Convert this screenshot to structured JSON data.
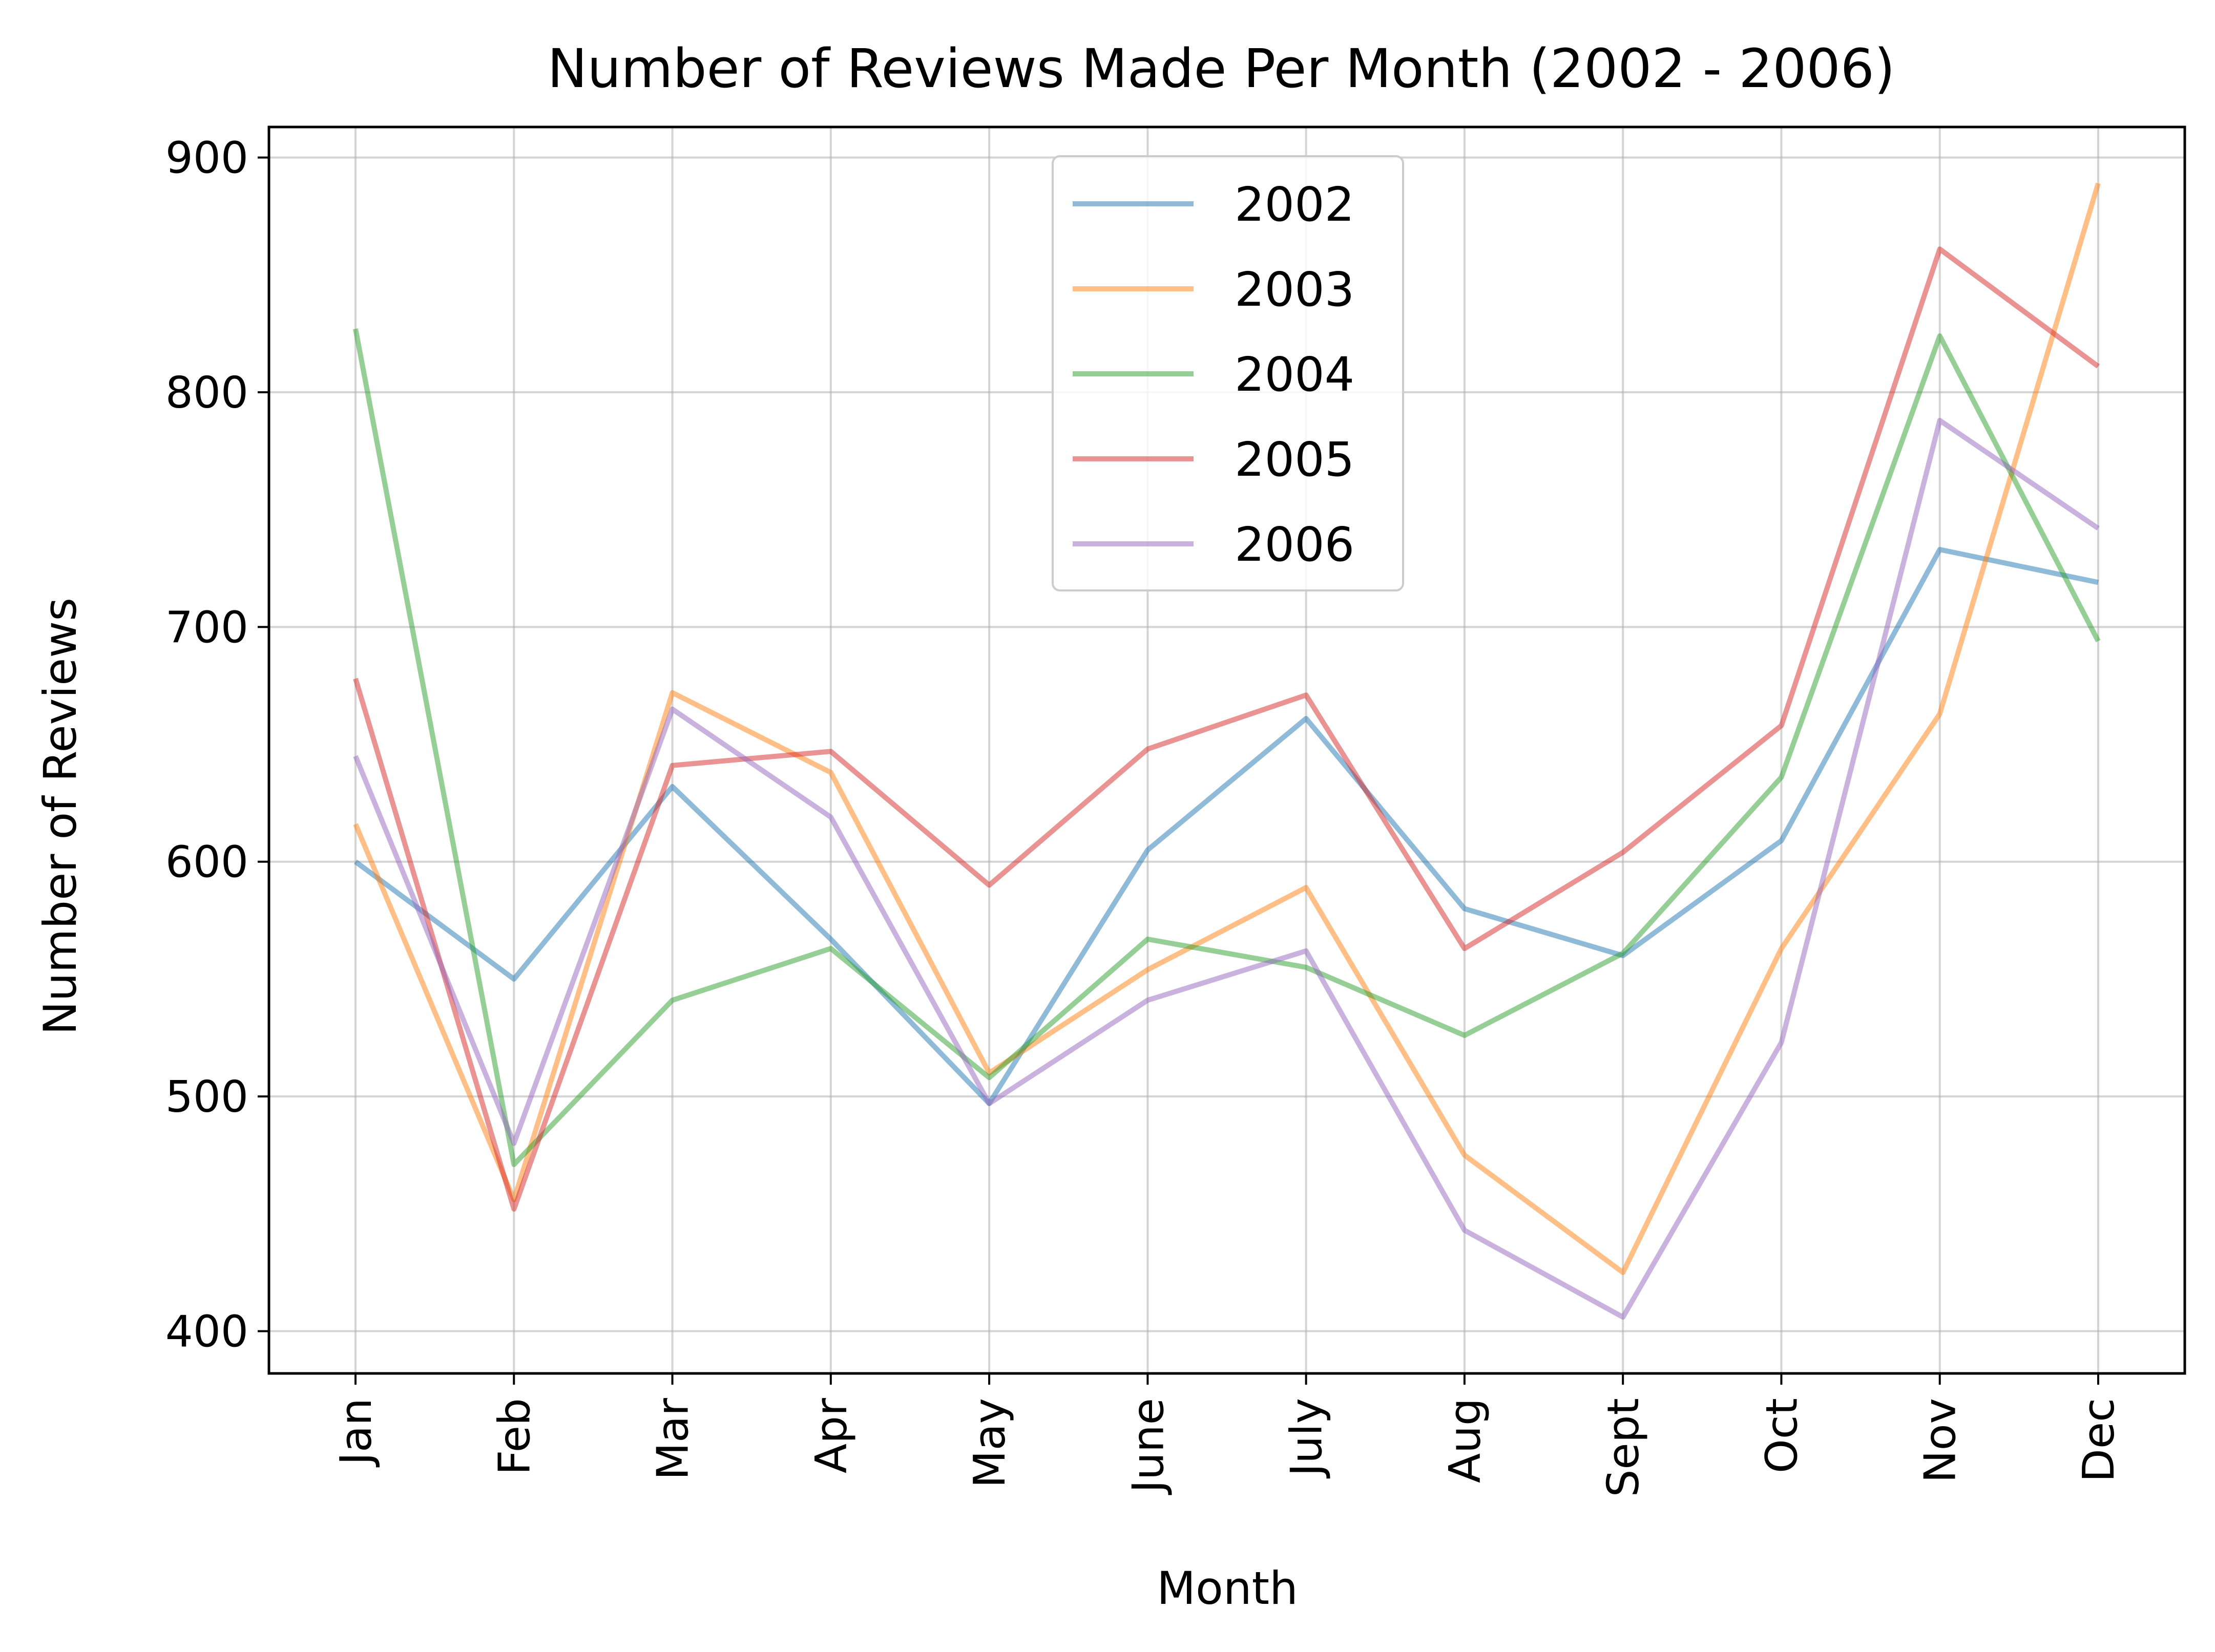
{
  "chart_data": {
    "type": "line",
    "title": "Number of Reviews Made Per Month (2002 - 2006)",
    "xlabel": "Month",
    "ylabel": "Number of Reviews",
    "categories": [
      "Jan",
      "Feb",
      "Mar",
      "Apr",
      "May",
      "June",
      "July",
      "Aug",
      "Sept",
      "Oct",
      "Nov",
      "Dec"
    ],
    "yticks": [
      400,
      500,
      600,
      700,
      800,
      900
    ],
    "ylim": [
      382,
      913
    ],
    "grid": true,
    "legend_position": "top-center",
    "series": [
      {
        "name": "2002",
        "color": "#1f77b4",
        "values": [
          600,
          550,
          632,
          567,
          497,
          605,
          661,
          580,
          560,
          609,
          733,
          719
        ]
      },
      {
        "name": "2003",
        "color": "#ff7f0e",
        "values": [
          616,
          456,
          672,
          638,
          510,
          554,
          589,
          475,
          425,
          563,
          663,
          889
        ]
      },
      {
        "name": "2004",
        "color": "#2ca02c",
        "values": [
          827,
          471,
          541,
          563,
          508,
          567,
          555,
          526,
          561,
          636,
          824,
          694
        ]
      },
      {
        "name": "2005",
        "color": "#d62728",
        "values": [
          678,
          452,
          641,
          647,
          590,
          648,
          671,
          563,
          604,
          658,
          861,
          811
        ]
      },
      {
        "name": "2006",
        "color": "#9467bd",
        "values": [
          645,
          480,
          665,
          619,
          497,
          541,
          562,
          443,
          406,
          523,
          788,
          742
        ]
      }
    ]
  }
}
